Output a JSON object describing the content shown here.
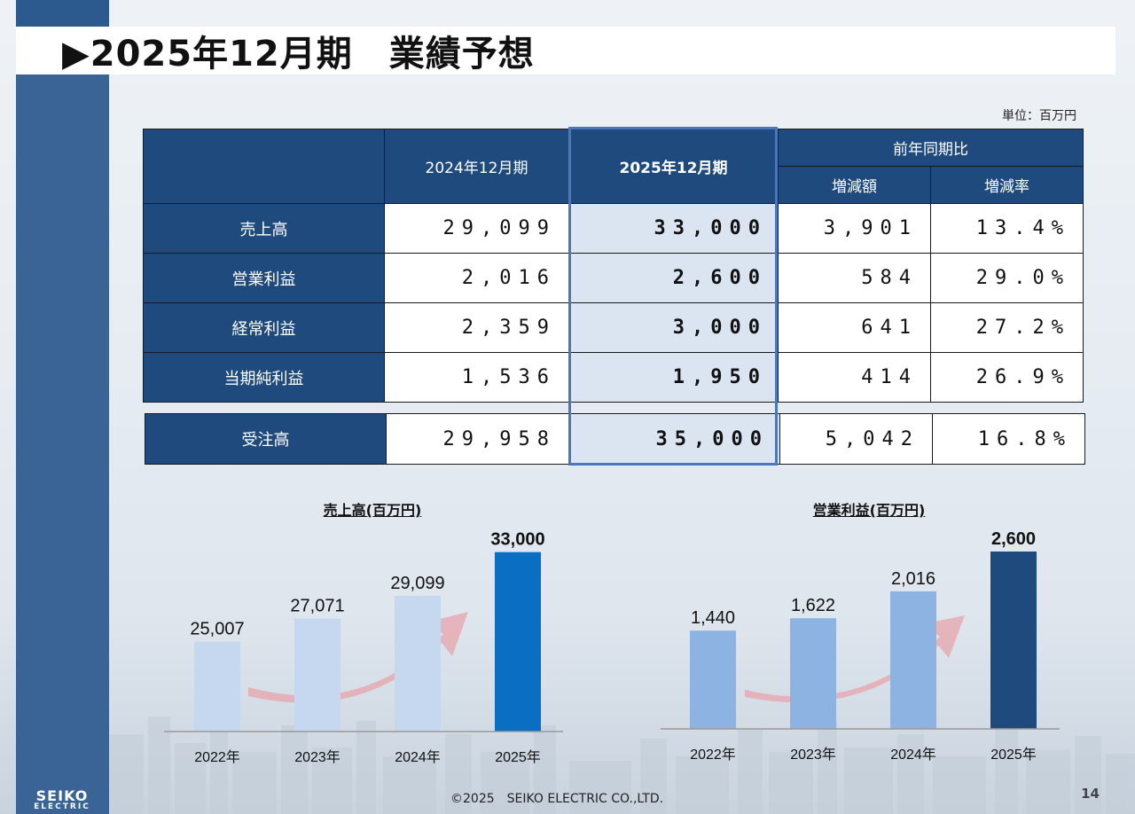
{
  "title": "▶2025年12月期　業績予想",
  "unit_label": "単位：百万円",
  "table": {
    "header": {
      "col_prev": "2024年12月期",
      "col_curr": "2025年12月期",
      "group": "前年同期比",
      "col_diff": "増減額",
      "col_rate": "増減率"
    },
    "rows": [
      {
        "label": "売上高",
        "prev": "29,099",
        "curr": "33,000",
        "diff": "3,901",
        "rate": "13.4%"
      },
      {
        "label": "営業利益",
        "prev": "2,016",
        "curr": "2,600",
        "diff": "584",
        "rate": "29.0%"
      },
      {
        "label": "経常利益",
        "prev": "2,359",
        "curr": "3,000",
        "diff": "641",
        "rate": "27.2%"
      },
      {
        "label": "当期純利益",
        "prev": "1,536",
        "curr": "1,950",
        "diff": "414",
        "rate": "26.9%"
      }
    ],
    "orders": {
      "label": "受注高",
      "prev": "29,958",
      "curr": "35,000",
      "diff": "5,042",
      "rate": "16.8%"
    }
  },
  "chart_data": [
    {
      "type": "bar",
      "title": "売上高(百万円)",
      "categories": [
        "2022年",
        "2023年",
        "2024年",
        "2025年"
      ],
      "values": [
        25007,
        27071,
        29099,
        33000
      ],
      "value_labels": [
        "25,007",
        "27,071",
        "29,099",
        "33,000"
      ],
      "ylim": [
        17000,
        34000
      ],
      "colors": [
        "#c5d8ef",
        "#c5d8ef",
        "#c5d8ef",
        "#0a6fc2"
      ],
      "highlight_index": 3
    },
    {
      "type": "bar",
      "title": "営業利益(百万円)",
      "categories": [
        "2022年",
        "2023年",
        "2024年",
        "2025年"
      ],
      "values": [
        1440,
        1622,
        2016,
        2600
      ],
      "value_labels": [
        "1,440",
        "1,622",
        "2,016",
        "2,600"
      ],
      "ylim": [
        0,
        2600
      ],
      "colors": [
        "#8db3e2",
        "#8db3e2",
        "#8db3e2",
        "#1f4a7e"
      ],
      "highlight_index": 3
    }
  ],
  "footer": "©2025　SEIKO ELECTRIC CO.,LTD.",
  "page_number": "14",
  "logo": {
    "line1": "SEIKO",
    "line2": "ELECTRIC"
  }
}
